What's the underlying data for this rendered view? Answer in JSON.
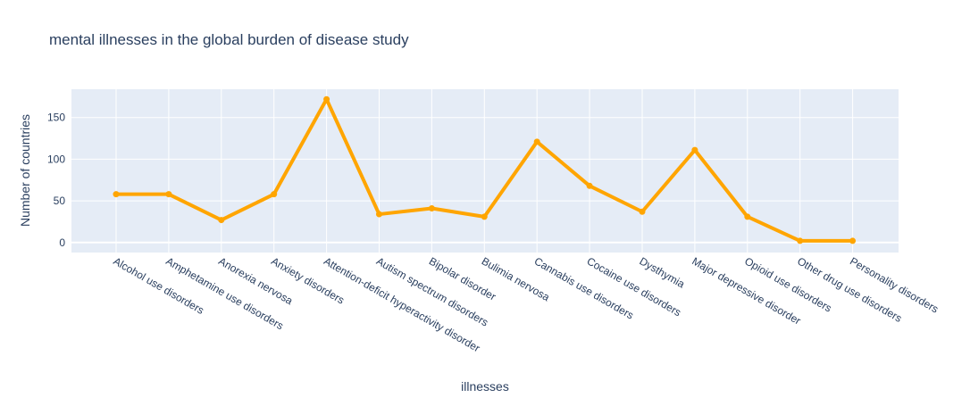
{
  "chart_data": {
    "type": "line",
    "title": "mental illnesses in the global burden of disease study",
    "xlabel": "illnesses",
    "ylabel": "Number of countries",
    "categories": [
      "Alcohol use disorders",
      "Amphetamine use disorders",
      "Anorexia nervosa",
      "Anxiety disorders",
      "Attention-deficit hyperactivity disorder",
      "Autism spectrum disorders",
      "Bipolar disorder",
      "Bulimia nervosa",
      "Cannabis use disorders",
      "Cocaine use disorders",
      "Dysthymia",
      "Major depressive disorder",
      "Opioid use disorders",
      "Other drug use disorders",
      "Personality disorders"
    ],
    "series": [
      {
        "values": [
          58,
          58,
          27,
          58,
          172,
          34,
          41,
          31,
          121,
          68,
          37,
          111,
          31,
          2,
          2
        ],
        "color": "#ffa500"
      }
    ],
    "ylim": [
      -12,
      184
    ],
    "yticks": [
      0,
      50,
      100,
      150
    ],
    "grid": true,
    "background": "#e5ecf6",
    "gridcolor": "#ffffff",
    "textcolor": "#2a3f5f"
  }
}
